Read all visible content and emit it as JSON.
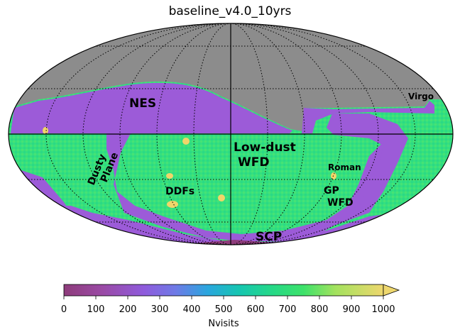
{
  "title": "baseline_v4.0_10yrs",
  "regions": {
    "nes": "NES",
    "virgo": "Virgo",
    "low_dust_1": "Low-dust",
    "low_dust_2": "WFD",
    "dusty_1": "Dusty",
    "dusty_2": "Plane",
    "roman": "Roman",
    "gp_1": "GP",
    "gp_2": "WFD",
    "ddfs": "DDFs",
    "scp": "SCP"
  },
  "colorbar": {
    "label": "Nvisits",
    "min": 0,
    "max": 1000,
    "extend": "max",
    "ticks": [
      "0",
      "100",
      "200",
      "300",
      "400",
      "500",
      "600",
      "700",
      "800",
      "900",
      "1000"
    ]
  },
  "colors": {
    "unobserved": "#8c8c8c",
    "low": "#8e3c7b",
    "mid": "#9c5bd8",
    "wfd": "#33e27c",
    "high": "#f1d56a"
  }
}
